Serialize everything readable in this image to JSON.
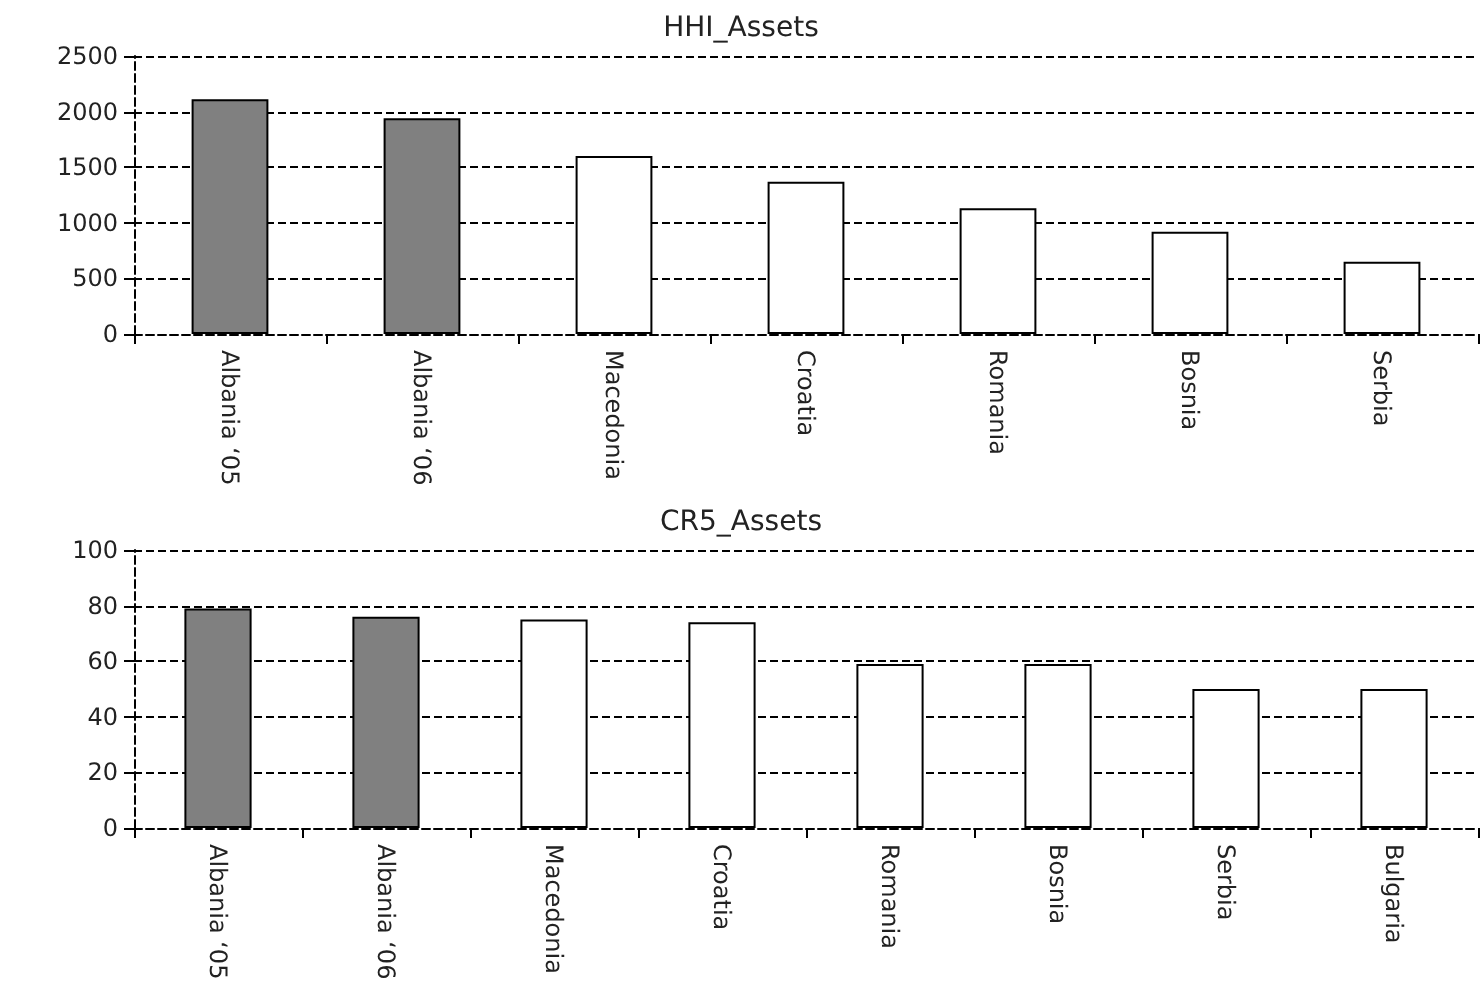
{
  "chart_data": [
    {
      "type": "bar",
      "title": "HHI_Assets",
      "categories": [
        "Albania ‘05",
        "Albania ‘06",
        "Macedonia",
        "Croatia",
        "Romania",
        "Bosnia",
        "Serbia"
      ],
      "values": [
        2110,
        1940,
        1600,
        1370,
        1130,
        920,
        650
      ],
      "colors": [
        "#808080",
        "#808080",
        "#ffffff",
        "#ffffff",
        "#ffffff",
        "#ffffff",
        "#ffffff"
      ],
      "ylim": [
        0,
        2500
      ],
      "yticks": [
        0,
        500,
        1000,
        1500,
        2000,
        2500
      ],
      "grid": "y"
    },
    {
      "type": "bar",
      "title": "CR5_Assets",
      "categories": [
        "Albania ‘05",
        "Albania ‘06",
        "Macedonia",
        "Croatia",
        "Romania",
        "Bosnia",
        "Serbia",
        "Bulgaria"
      ],
      "values": [
        79,
        76,
        75,
        74,
        59,
        59,
        50,
        50
      ],
      "colors": [
        "#808080",
        "#808080",
        "#ffffff",
        "#ffffff",
        "#ffffff",
        "#ffffff",
        "#ffffff",
        "#ffffff"
      ],
      "ylim": [
        0,
        100
      ],
      "yticks": [
        0,
        20,
        40,
        60,
        80,
        100
      ],
      "grid": "y"
    }
  ]
}
